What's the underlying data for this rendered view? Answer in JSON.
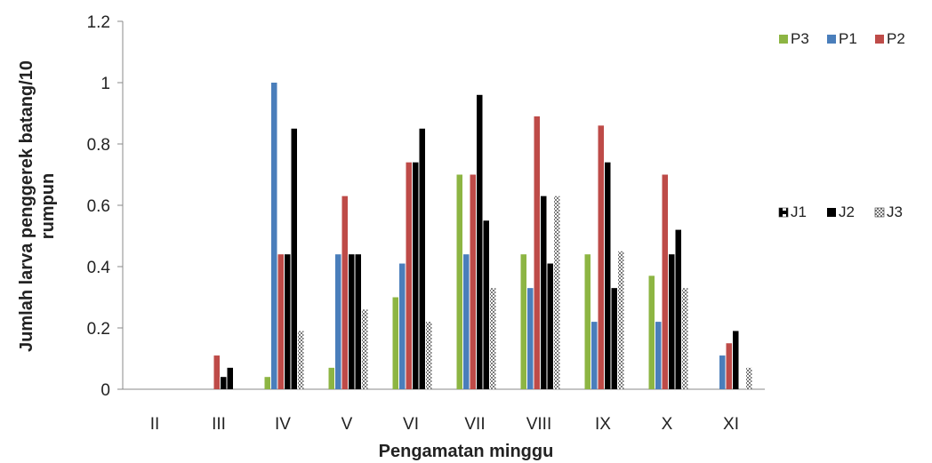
{
  "chart_data": {
    "type": "bar",
    "xlabel": "Pengamatan minggu",
    "ylabel_lines": [
      "Jumlah larva penggerek batang/10",
      "rumpun"
    ],
    "ylim": [
      0,
      1.2
    ],
    "yticks": [
      "0",
      "0.2",
      "0.4",
      "0.6",
      "0.8",
      "1",
      "1.2"
    ],
    "categories": [
      "II",
      "III",
      "IV",
      "V",
      "VI",
      "VII",
      "VIII",
      "IX",
      "X",
      "XI"
    ],
    "legend_groups": [
      {
        "position": "top-right",
        "entries": [
          "P3",
          "P1",
          "P2"
        ]
      },
      {
        "position": "right",
        "entries": [
          "J1",
          "J2",
          "J3"
        ]
      }
    ],
    "series": [
      {
        "name": "P3",
        "color": "#8db543",
        "pattern": "solid",
        "values": [
          0,
          0,
          0.04,
          0.07,
          0.3,
          0.7,
          0.44,
          0.44,
          0.37,
          0
        ]
      },
      {
        "name": "P1",
        "color": "#4a7ebb",
        "pattern": "solid",
        "values": [
          0,
          0,
          1.0,
          0.44,
          0.41,
          0.44,
          0.33,
          0.22,
          0.22,
          0.11
        ]
      },
      {
        "name": "P2",
        "color": "#be4b48",
        "pattern": "solid",
        "values": [
          0,
          0.11,
          0.44,
          0.63,
          0.74,
          0.7,
          0.89,
          0.86,
          0.7,
          0.15
        ]
      },
      {
        "name": "J1",
        "color": "#111111",
        "pattern": "dashed-center",
        "values": [
          0,
          0.04,
          0.44,
          0.44,
          0.74,
          0.96,
          0.63,
          0.74,
          0.44,
          0.19
        ]
      },
      {
        "name": "J2",
        "color": "#000000",
        "pattern": "solid",
        "values": [
          0,
          0.07,
          0.85,
          0.44,
          0.85,
          0.55,
          0.41,
          0.33,
          0.52,
          0
        ]
      },
      {
        "name": "J3",
        "color": "#777777",
        "pattern": "checker",
        "values": [
          0,
          0,
          0.19,
          0.26,
          0.22,
          0.33,
          0.63,
          0.45,
          0.33,
          0.07
        ]
      }
    ]
  }
}
